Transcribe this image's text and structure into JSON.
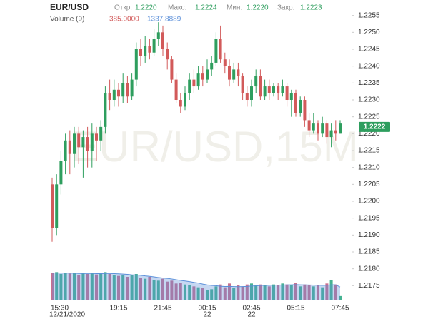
{
  "chart_data": {
    "type": "candlestick",
    "title": "EUR/USD",
    "watermark": "EUR/USD,15M",
    "header": {
      "open_label": "Откр.",
      "open": "1.2220",
      "high_label": "Макс.",
      "high": "1.2224",
      "low_label": "Мин.",
      "low": "1.2220",
      "close_label": "Закр.",
      "close": "1.2223"
    },
    "categories": [
      "15:30",
      null,
      null,
      null,
      null,
      null,
      null,
      null,
      null,
      null,
      null,
      null,
      null,
      null,
      null,
      "19:15",
      null,
      null,
      null,
      null,
      null,
      null,
      null,
      null,
      null,
      "21:45",
      null,
      null,
      null,
      null,
      null,
      null,
      null,
      null,
      null,
      "00:15",
      null,
      null,
      null,
      null,
      null,
      null,
      null,
      null,
      null,
      "02:45",
      null,
      null,
      null,
      null,
      null,
      null,
      null,
      null,
      null,
      "05:15",
      null,
      null,
      null,
      null,
      null,
      null,
      null,
      null,
      null,
      "07:45"
    ],
    "dates": [
      "12/21/2020",
      null,
      null,
      null,
      null,
      null,
      null,
      null,
      null,
      null,
      null,
      null,
      null,
      null,
      null,
      null,
      null,
      null,
      null,
      null,
      null,
      null,
      null,
      null,
      null,
      null,
      null,
      null,
      null,
      null,
      null,
      null,
      null,
      null,
      null,
      "22",
      null,
      null,
      null,
      null,
      null,
      null,
      null,
      null,
      null,
      "22",
      null,
      null,
      null,
      null,
      null,
      null,
      null,
      null,
      null,
      null,
      null,
      null,
      null,
      null,
      null,
      null,
      null,
      null,
      null,
      null
    ],
    "open": [
      1.2205,
      1.2192,
      1.2205,
      1.2212,
      1.2218,
      1.2214,
      1.222,
      1.2216,
      1.2219,
      1.2215,
      1.222,
      1.2218,
      1.2222,
      1.2232,
      1.223,
      1.2233,
      1.2231,
      1.2235,
      1.2231,
      1.2236,
      1.2245,
      1.2243,
      1.2246,
      1.2244,
      1.2248,
      1.225,
      1.2245,
      1.2242,
      1.2236,
      1.223,
      1.2228,
      1.2232,
      1.2236,
      1.2234,
      1.2238,
      1.2236,
      1.2239,
      1.2241,
      1.2248,
      1.2242,
      1.224,
      1.2236,
      1.2239,
      1.2237,
      1.2232,
      1.223,
      1.2234,
      1.2237,
      1.2231,
      1.2234,
      1.2232,
      1.2234,
      1.2232,
      1.2234,
      1.223,
      1.2232,
      1.2226,
      1.223,
      1.2224,
      1.2221,
      1.2223,
      1.222,
      1.2223,
      1.2219,
      1.2221,
      1.222
    ],
    "high": [
      1.2207,
      1.2208,
      1.2215,
      1.222,
      1.2221,
      1.2222,
      1.2222,
      1.2221,
      1.2222,
      1.2223,
      1.2222,
      1.2224,
      1.2234,
      1.2236,
      1.2236,
      1.2235,
      1.2238,
      1.2237,
      1.2238,
      1.2247,
      1.2248,
      1.2249,
      1.2248,
      1.2251,
      1.2253,
      1.2252,
      1.2247,
      1.2243,
      1.2238,
      1.2232,
      1.2234,
      1.2238,
      1.2239,
      1.224,
      1.224,
      1.2242,
      1.2243,
      1.225,
      1.2252,
      1.2244,
      1.2242,
      1.2241,
      1.2241,
      1.2238,
      1.2234,
      1.2236,
      1.2239,
      1.2239,
      1.2236,
      1.2236,
      1.2235,
      1.2235,
      1.2236,
      1.2235,
      1.2233,
      1.2233,
      1.2231,
      1.2231,
      1.2226,
      1.2226,
      1.2224,
      1.2225,
      1.2224,
      1.2223,
      1.2224,
      1.2224
    ],
    "low": [
      1.2188,
      1.219,
      1.2202,
      1.2208,
      1.2208,
      1.221,
      1.2211,
      1.2207,
      1.221,
      1.221,
      1.2212,
      1.2215,
      1.222,
      1.2227,
      1.2228,
      1.2228,
      1.2229,
      1.2229,
      1.223,
      1.2234,
      1.224,
      1.2241,
      1.2242,
      1.2243,
      1.2246,
      1.2243,
      1.2239,
      1.2235,
      1.2229,
      1.2226,
      1.2227,
      1.223,
      1.2232,
      1.2233,
      1.2234,
      1.2235,
      1.2237,
      1.224,
      1.2241,
      1.2238,
      1.2234,
      1.2235,
      1.2234,
      1.223,
      1.2228,
      1.2228,
      1.2232,
      1.223,
      1.223,
      1.223,
      1.2231,
      1.223,
      1.2231,
      1.2228,
      1.2225,
      1.2225,
      1.2225,
      1.2222,
      1.2219,
      1.222,
      1.2218,
      1.2219,
      1.2217,
      1.2216,
      1.2218,
      1.222
    ],
    "close": [
      1.2192,
      1.2205,
      1.2212,
      1.2218,
      1.2214,
      1.222,
      1.2216,
      1.2219,
      1.2215,
      1.222,
      1.2218,
      1.2222,
      1.2232,
      1.223,
      1.2233,
      1.2231,
      1.2235,
      1.2231,
      1.2236,
      1.2245,
      1.2243,
      1.2246,
      1.2244,
      1.2248,
      1.225,
      1.2245,
      1.2242,
      1.2236,
      1.223,
      1.2228,
      1.2232,
      1.2236,
      1.2234,
      1.2238,
      1.2236,
      1.2239,
      1.2241,
      1.2248,
      1.2242,
      1.224,
      1.2236,
      1.2239,
      1.2237,
      1.2232,
      1.223,
      1.2234,
      1.2237,
      1.2231,
      1.2234,
      1.2232,
      1.2234,
      1.2232,
      1.2234,
      1.223,
      1.2232,
      1.2226,
      1.223,
      1.2224,
      1.2221,
      1.2223,
      1.222,
      1.2223,
      1.2219,
      1.2221,
      1.222,
      1.2223
    ],
    "up_color": "#2e9e5e",
    "down_color": "#d25a5a",
    "ylim": [
      1.217,
      1.226
    ],
    "yticks": [
      1.2255,
      {
        "value": 1.225,
        "label": "1.2250"
      },
      1.2245,
      {
        "value": 1.224,
        "label": "1.2240"
      },
      1.2235,
      {
        "value": 1.223,
        "label": "1.2230"
      },
      1.2225,
      {
        "value": 1.222,
        "label": "1.2220"
      },
      1.2215,
      {
        "value": 1.221,
        "label": "1.2210"
      },
      1.2205,
      {
        "value": 1.22,
        "label": "1.2200"
      },
      1.2195,
      {
        "value": 1.219,
        "label": "1.2190"
      },
      1.2185,
      {
        "value": 1.218,
        "label": "1.2180"
      },
      1.2175
    ],
    "last_price": {
      "value": 1.2222,
      "label": "1.2222"
    },
    "volume": {
      "name": "Volume (9)",
      "values": [
        2800,
        2900,
        2700,
        2850,
        2750,
        2800,
        2600,
        2850,
        2700,
        2800,
        2650,
        2750,
        2900,
        2700,
        2600,
        2500,
        2600,
        2400,
        2550,
        2700,
        2300,
        2200,
        2400,
        2100,
        2000,
        2200,
        1900,
        2000,
        1700,
        1800,
        1600,
        1500,
        1400,
        1300,
        1200,
        1000,
        1100,
        1400,
        1600,
        1300,
        1700,
        1200,
        1500,
        1400,
        1600,
        1700,
        1500,
        1600,
        1500,
        1400,
        1600,
        1500,
        1700,
        1600,
        1500,
        1800,
        1400,
        1600,
        1500,
        1400,
        1500,
        1300,
        1700,
        2100,
        1600,
        385
      ],
      "ma": [
        2800,
        2820,
        2800,
        2800,
        2790,
        2780,
        2760,
        2770,
        2760,
        2770,
        2740,
        2740,
        2760,
        2760,
        2740,
        2720,
        2690,
        2660,
        2620,
        2610,
        2560,
        2500,
        2460,
        2400,
        2330,
        2280,
        2240,
        2180,
        2100,
        2030,
        1970,
        1900,
        1820,
        1750,
        1640,
        1560,
        1500,
        1470,
        1420,
        1390,
        1400,
        1380,
        1370,
        1380,
        1400,
        1440,
        1450,
        1500,
        1510,
        1520,
        1540,
        1540,
        1550,
        1560,
        1570,
        1580,
        1570,
        1560,
        1550,
        1540,
        1520,
        1510,
        1520,
        1570,
        1570,
        1337.8889
      ],
      "value_label": "385.0000",
      "ma_label": "1337.8889",
      "ylim": [
        0,
        3000
      ],
      "up_color": "#45b392",
      "down_color": "#c9708f",
      "ma_color": "#5b8fd9"
    }
  }
}
